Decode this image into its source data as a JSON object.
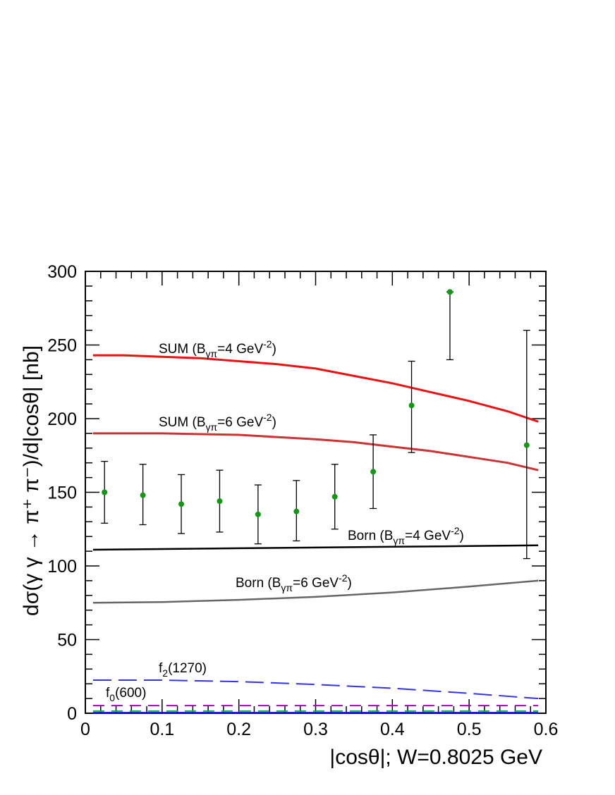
{
  "chart_data": {
    "type": "line",
    "xlabel": "|cosθ|; W=0.8025 GeV",
    "ylabel": "dσ(γ γ → π⁺ π⁻)/d|cosθ| [nb]",
    "xlim": [
      0,
      0.6
    ],
    "ylim": [
      0,
      300
    ],
    "x_ticks": [
      "0",
      "0.1",
      "0.2",
      "0.3",
      "0.4",
      "0.5",
      "0.6"
    ],
    "y_ticks": [
      "0",
      "50",
      "100",
      "150",
      "200",
      "250",
      "300"
    ],
    "grid": false,
    "series": [
      {
        "name": "SUM (Bγπ=4 GeV⁻²)",
        "color": "#ee1111",
        "style": "solid",
        "x": [
          0.01,
          0.05,
          0.1,
          0.15,
          0.2,
          0.25,
          0.3,
          0.35,
          0.4,
          0.45,
          0.5,
          0.55,
          0.59
        ],
        "y": [
          243,
          243,
          242,
          241,
          239,
          237,
          234,
          229,
          224,
          218,
          212,
          205,
          198
        ]
      },
      {
        "name": "SUM (Bγπ=6 GeV⁻²)",
        "color": "#cc3333",
        "style": "solid",
        "x": [
          0.01,
          0.1,
          0.2,
          0.3,
          0.35,
          0.4,
          0.45,
          0.5,
          0.55,
          0.59
        ],
        "y": [
          190,
          190,
          189,
          186,
          184,
          181,
          178,
          174,
          170,
          165
        ]
      },
      {
        "name": "Born (Bγπ=4 GeV⁻²)",
        "color": "#000000",
        "style": "solid",
        "x": [
          0.01,
          0.1,
          0.2,
          0.3,
          0.4,
          0.5,
          0.59
        ],
        "y": [
          111,
          111.5,
          112,
          112.5,
          113,
          113.5,
          114
        ]
      },
      {
        "name": "Born (Bγπ=6 GeV⁻²)",
        "color": "#666666",
        "style": "solid",
        "x": [
          0.01,
          0.1,
          0.2,
          0.3,
          0.4,
          0.5,
          0.59
        ],
        "y": [
          75,
          75.5,
          77,
          79,
          82,
          86,
          90
        ]
      },
      {
        "name": "f2(1270)",
        "color": "#3333ee",
        "style": "long-dash",
        "x": [
          0.01,
          0.1,
          0.2,
          0.3,
          0.4,
          0.5,
          0.59
        ],
        "y": [
          22.5,
          22.5,
          21.5,
          19.5,
          17,
          13.5,
          10
        ]
      },
      {
        "name": "f0(600)",
        "color": "#9911aa",
        "style": "dash",
        "x": [
          0.01,
          0.59
        ],
        "y": [
          5.2,
          5.2
        ]
      },
      {
        "name": "",
        "color": "#22aa44",
        "style": "dash",
        "x": [
          0.01,
          0.59
        ],
        "y": [
          1.5,
          1.5
        ]
      },
      {
        "name": "",
        "color": "#1111dd",
        "style": "solid",
        "x": [
          0.01,
          0.59
        ],
        "y": [
          0.3,
          0.3
        ]
      }
    ],
    "points": {
      "color": "#119911",
      "x": [
        0.025,
        0.075,
        0.125,
        0.175,
        0.225,
        0.275,
        0.325,
        0.375,
        0.425,
        0.475,
        0.575
      ],
      "y": [
        150,
        148,
        142,
        144,
        135,
        137,
        147,
        164,
        209,
        286,
        182
      ],
      "err_low": [
        21,
        20,
        20,
        21,
        20,
        20,
        22,
        25,
        32,
        46,
        77
      ],
      "err_high": [
        21,
        21,
        20,
        21,
        20,
        21,
        22,
        25,
        30,
        0,
        78
      ]
    },
    "curve_labels": [
      {
        "main": "SUM (B",
        "sub": "γπ",
        "rest": "=4 GeV",
        "sup": "-2",
        "end": ")"
      },
      {
        "main": "SUM (B",
        "sub": "γπ",
        "rest": "=6 GeV",
        "sup": "-2",
        "end": ")"
      },
      {
        "main": "Born (B",
        "sub": "γπ",
        "rest": "=4 GeV",
        "sup": "-2",
        "end": ")"
      },
      {
        "main": "Born (B",
        "sub": "γπ",
        "rest": "=6 GeV",
        "sup": "-2",
        "end": ")"
      },
      {
        "main": "f",
        "sub": "2",
        "rest": "(1270)",
        "sup": "",
        "end": ""
      },
      {
        "main": "f",
        "sub": "0",
        "rest": "(600)",
        "sup": "",
        "end": ""
      }
    ]
  }
}
